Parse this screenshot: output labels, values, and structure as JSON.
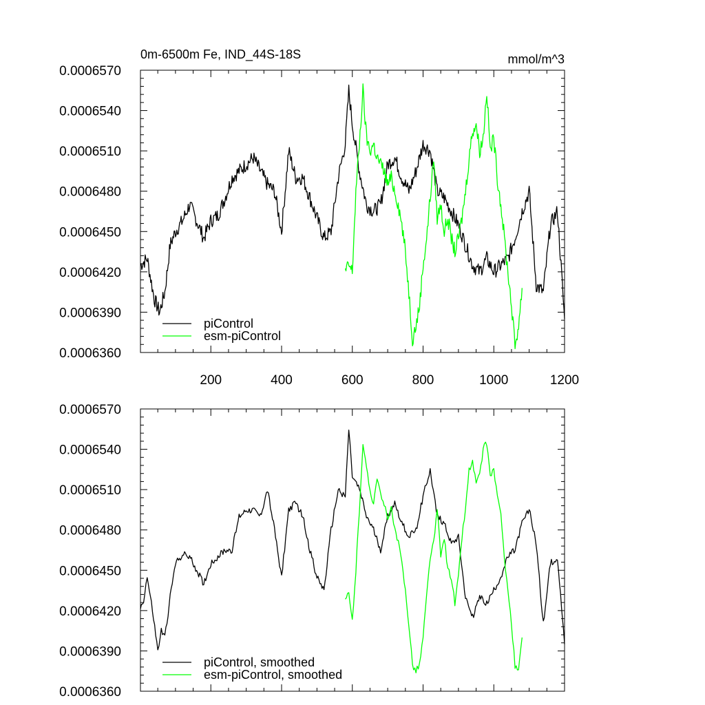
{
  "units_label": "mmol/m^3",
  "chart_data": [
    {
      "type": "line",
      "title": "0m-6500m Fe, IND_44S-18S",
      "xlim": [
        1,
        1200
      ],
      "ylim": [
        0.000636,
        0.000657
      ],
      "x_ticks": [
        200,
        400,
        600,
        800,
        1000,
        1200
      ],
      "y_ticks": [
        "0.0006360",
        "0.0006390",
        "0.0006420",
        "0.0006450",
        "0.0006480",
        "0.0006510",
        "0.0006540",
        "0.0006570"
      ],
      "legend_position": "bottom-left",
      "series": [
        {
          "name": "piControl",
          "color": "#000000",
          "x": [
            1,
            20,
            40,
            55,
            70,
            85,
            100,
            120,
            140,
            160,
            180,
            200,
            220,
            240,
            260,
            280,
            300,
            320,
            340,
            360,
            380,
            400,
            420,
            440,
            460,
            480,
            500,
            520,
            540,
            560,
            580,
            590,
            600,
            620,
            640,
            660,
            680,
            700,
            720,
            740,
            760,
            780,
            800,
            820,
            840,
            860,
            880,
            900,
            920,
            940,
            960,
            980,
            1000,
            1020,
            1040,
            1060,
            1080,
            1100,
            1120,
            1140,
            1160,
            1180,
            1200
          ],
          "values": [
            0.0006425,
            0.000643,
            0.00064,
            0.000639,
            0.0006405,
            0.000644,
            0.000645,
            0.0006458,
            0.000647,
            0.0006458,
            0.0006445,
            0.0006458,
            0.0006462,
            0.0006475,
            0.000649,
            0.0006495,
            0.00065,
            0.0006505,
            0.0006495,
            0.0006485,
            0.000648,
            0.000645,
            0.000651,
            0.000649,
            0.000649,
            0.0006475,
            0.000646,
            0.0006445,
            0.000645,
            0.000649,
            0.0006515,
            0.0006555,
            0.000653,
            0.0006495,
            0.000647,
            0.0006465,
            0.000647,
            0.00065,
            0.0006505,
            0.000649,
            0.000648,
            0.0006495,
            0.0006515,
            0.000651,
            0.000648,
            0.0006475,
            0.0006465,
            0.0006455,
            0.000644,
            0.0006425,
            0.000642,
            0.000643,
            0.000642,
            0.0006425,
            0.000643,
            0.0006445,
            0.0006465,
            0.000648,
            0.000641,
            0.0006405,
            0.0006455,
            0.0006465,
            0.0006385
          ]
        },
        {
          "name": "esm-piControl",
          "color": "#00ff00",
          "x": [
            580,
            590,
            600,
            610,
            620,
            630,
            640,
            650,
            660,
            670,
            680,
            690,
            700,
            710,
            720,
            730,
            740,
            750,
            760,
            770,
            780,
            790,
            800,
            810,
            820,
            830,
            840,
            850,
            860,
            870,
            880,
            890,
            900,
            910,
            920,
            930,
            940,
            950,
            960,
            970,
            980,
            990,
            1000,
            1010,
            1020,
            1030,
            1040,
            1050,
            1060,
            1070,
            1080
          ],
          "values": [
            0.000642,
            0.0006425,
            0.000642,
            0.000648,
            0.0006515,
            0.0006555,
            0.000652,
            0.000651,
            0.0006515,
            0.0006505,
            0.00065,
            0.0006495,
            0.0006485,
            0.000649,
            0.000648,
            0.000647,
            0.0006455,
            0.0006435,
            0.0006405,
            0.000637,
            0.000638,
            0.0006395,
            0.0006425,
            0.0006445,
            0.0006475,
            0.0006505,
            0.000646,
            0.000647,
            0.000645,
            0.000646,
            0.0006445,
            0.0006435,
            0.0006445,
            0.000646,
            0.000648,
            0.0006505,
            0.0006525,
            0.000653,
            0.000651,
            0.000652,
            0.0006555,
            0.000651,
            0.000652,
            0.000649,
            0.000647,
            0.0006445,
            0.000642,
            0.0006395,
            0.0006365,
            0.000638,
            0.0006408
          ]
        }
      ]
    },
    {
      "type": "line",
      "title": "",
      "xlim": [
        1,
        1200
      ],
      "ylim": [
        0.000636,
        0.000657
      ],
      "x_ticks": [],
      "y_ticks": [
        "0.0006360",
        "0.0006390",
        "0.0006420",
        "0.0006450",
        "0.0006480",
        "0.0006510",
        "0.0006540",
        "0.0006570"
      ],
      "legend_position": "bottom-left",
      "series": [
        {
          "name": "piControl, smoothed",
          "color": "#000000",
          "x": [
            1,
            10,
            20,
            35,
            50,
            60,
            70,
            85,
            100,
            120,
            140,
            160,
            180,
            200,
            220,
            240,
            260,
            280,
            300,
            320,
            340,
            360,
            380,
            400,
            420,
            440,
            460,
            480,
            500,
            520,
            540,
            560,
            580,
            590,
            600,
            620,
            640,
            660,
            680,
            700,
            720,
            740,
            760,
            780,
            800,
            820,
            840,
            860,
            880,
            900,
            920,
            940,
            960,
            980,
            1000,
            1020,
            1040,
            1060,
            1080,
            1100,
            1120,
            1140,
            1160,
            1180,
            1200
          ],
          "values": [
            0.0006422,
            0.0006428,
            0.0006445,
            0.000642,
            0.000639,
            0.0006405,
            0.00064,
            0.000643,
            0.0006455,
            0.0006462,
            0.000646,
            0.000645,
            0.000644,
            0.0006455,
            0.000646,
            0.0006465,
            0.0006465,
            0.000649,
            0.0006495,
            0.0006495,
            0.000649,
            0.000651,
            0.000648,
            0.0006445,
            0.0006495,
            0.00065,
            0.000649,
            0.0006465,
            0.0006445,
            0.0006435,
            0.000648,
            0.000651,
            0.0006505,
            0.0006555,
            0.000652,
            0.000651,
            0.000649,
            0.000648,
            0.0006465,
            0.000649,
            0.00065,
            0.0006485,
            0.0006475,
            0.000648,
            0.0006505,
            0.0006525,
            0.000649,
            0.0006485,
            0.000647,
            0.0006475,
            0.000643,
            0.0006415,
            0.000643,
            0.0006425,
            0.0006435,
            0.0006445,
            0.000646,
            0.0006465,
            0.0006485,
            0.0006495,
            0.000647,
            0.000641,
            0.0006455,
            0.000646,
            0.0006395
          ]
        },
        {
          "name": "esm-piControl, smoothed",
          "color": "#00ff00",
          "x": [
            580,
            590,
            600,
            610,
            620,
            630,
            640,
            650,
            660,
            670,
            680,
            690,
            700,
            710,
            720,
            730,
            740,
            750,
            760,
            770,
            780,
            790,
            800,
            810,
            820,
            830,
            840,
            850,
            860,
            870,
            880,
            890,
            900,
            910,
            920,
            930,
            940,
            950,
            960,
            970,
            980,
            990,
            1000,
            1010,
            1020,
            1030,
            1040,
            1050,
            1060,
            1070,
            1080
          ],
          "values": [
            0.0006428,
            0.0006432,
            0.0006412,
            0.000645,
            0.0006495,
            0.0006545,
            0.0006525,
            0.000651,
            0.00065,
            0.000652,
            0.0006505,
            0.0006498,
            0.000649,
            0.0006495,
            0.000648,
            0.000647,
            0.0006455,
            0.0006435,
            0.000641,
            0.000638,
            0.0006375,
            0.000638,
            0.00064,
            0.000643,
            0.000646,
            0.000647,
            0.0006495,
            0.000646,
            0.0006475,
            0.000645,
            0.0006445,
            0.0006425,
            0.0006445,
            0.0006475,
            0.0006495,
            0.0006525,
            0.000653,
            0.0006515,
            0.000652,
            0.000654,
            0.0006545,
            0.000652,
            0.0006525,
            0.0006505,
            0.000649,
            0.000646,
            0.0006435,
            0.000641,
            0.0006378,
            0.0006375,
            0.00064
          ]
        }
      ]
    }
  ]
}
